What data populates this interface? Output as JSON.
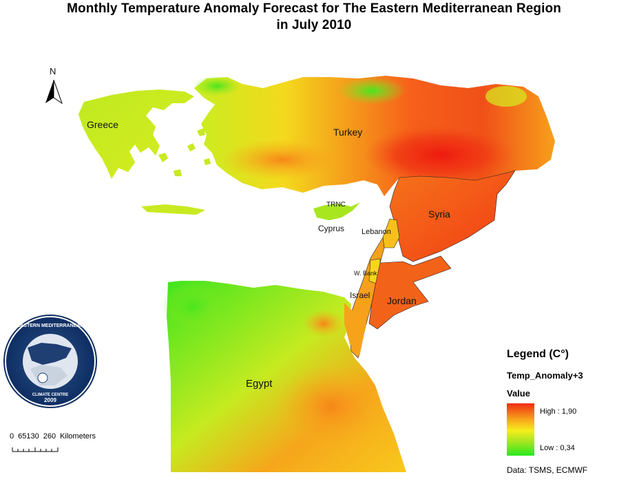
{
  "title_line1": "Monthly Temperature Anomaly Forecast for  The Eastern Mediterranean Region",
  "title_line2": "in July 2010",
  "north_label": "N",
  "regions": {
    "greece": "Greece",
    "turkey": "Turkey",
    "syria": "Syria",
    "trnc": "TRNC",
    "cyprus": "Cyprus",
    "lebanon": "Lebanon",
    "west_bank": "W. Bank",
    "israel": "Israel",
    "jordan": "Jordan",
    "egypt": "Egypt"
  },
  "logo": {
    "text": "EASTERN MEDITERRANEAN CLIMATE CENTRE",
    "year": "2009"
  },
  "scale_bar": {
    "ticks": [
      "0",
      "65130",
      "260"
    ],
    "unit": "Kilometers"
  },
  "legend": {
    "title": "Legend (C°)",
    "field": "Temp_Anomaly+3",
    "subtitle": "Value",
    "high_label": "High : 1,90",
    "low_label": "Low : 0,34",
    "colors": {
      "high": "#ef2c12",
      "mid": "#f6ee1e",
      "low": "#28e81e"
    }
  },
  "data_source": "Data:  TSMS, ECMWF"
}
